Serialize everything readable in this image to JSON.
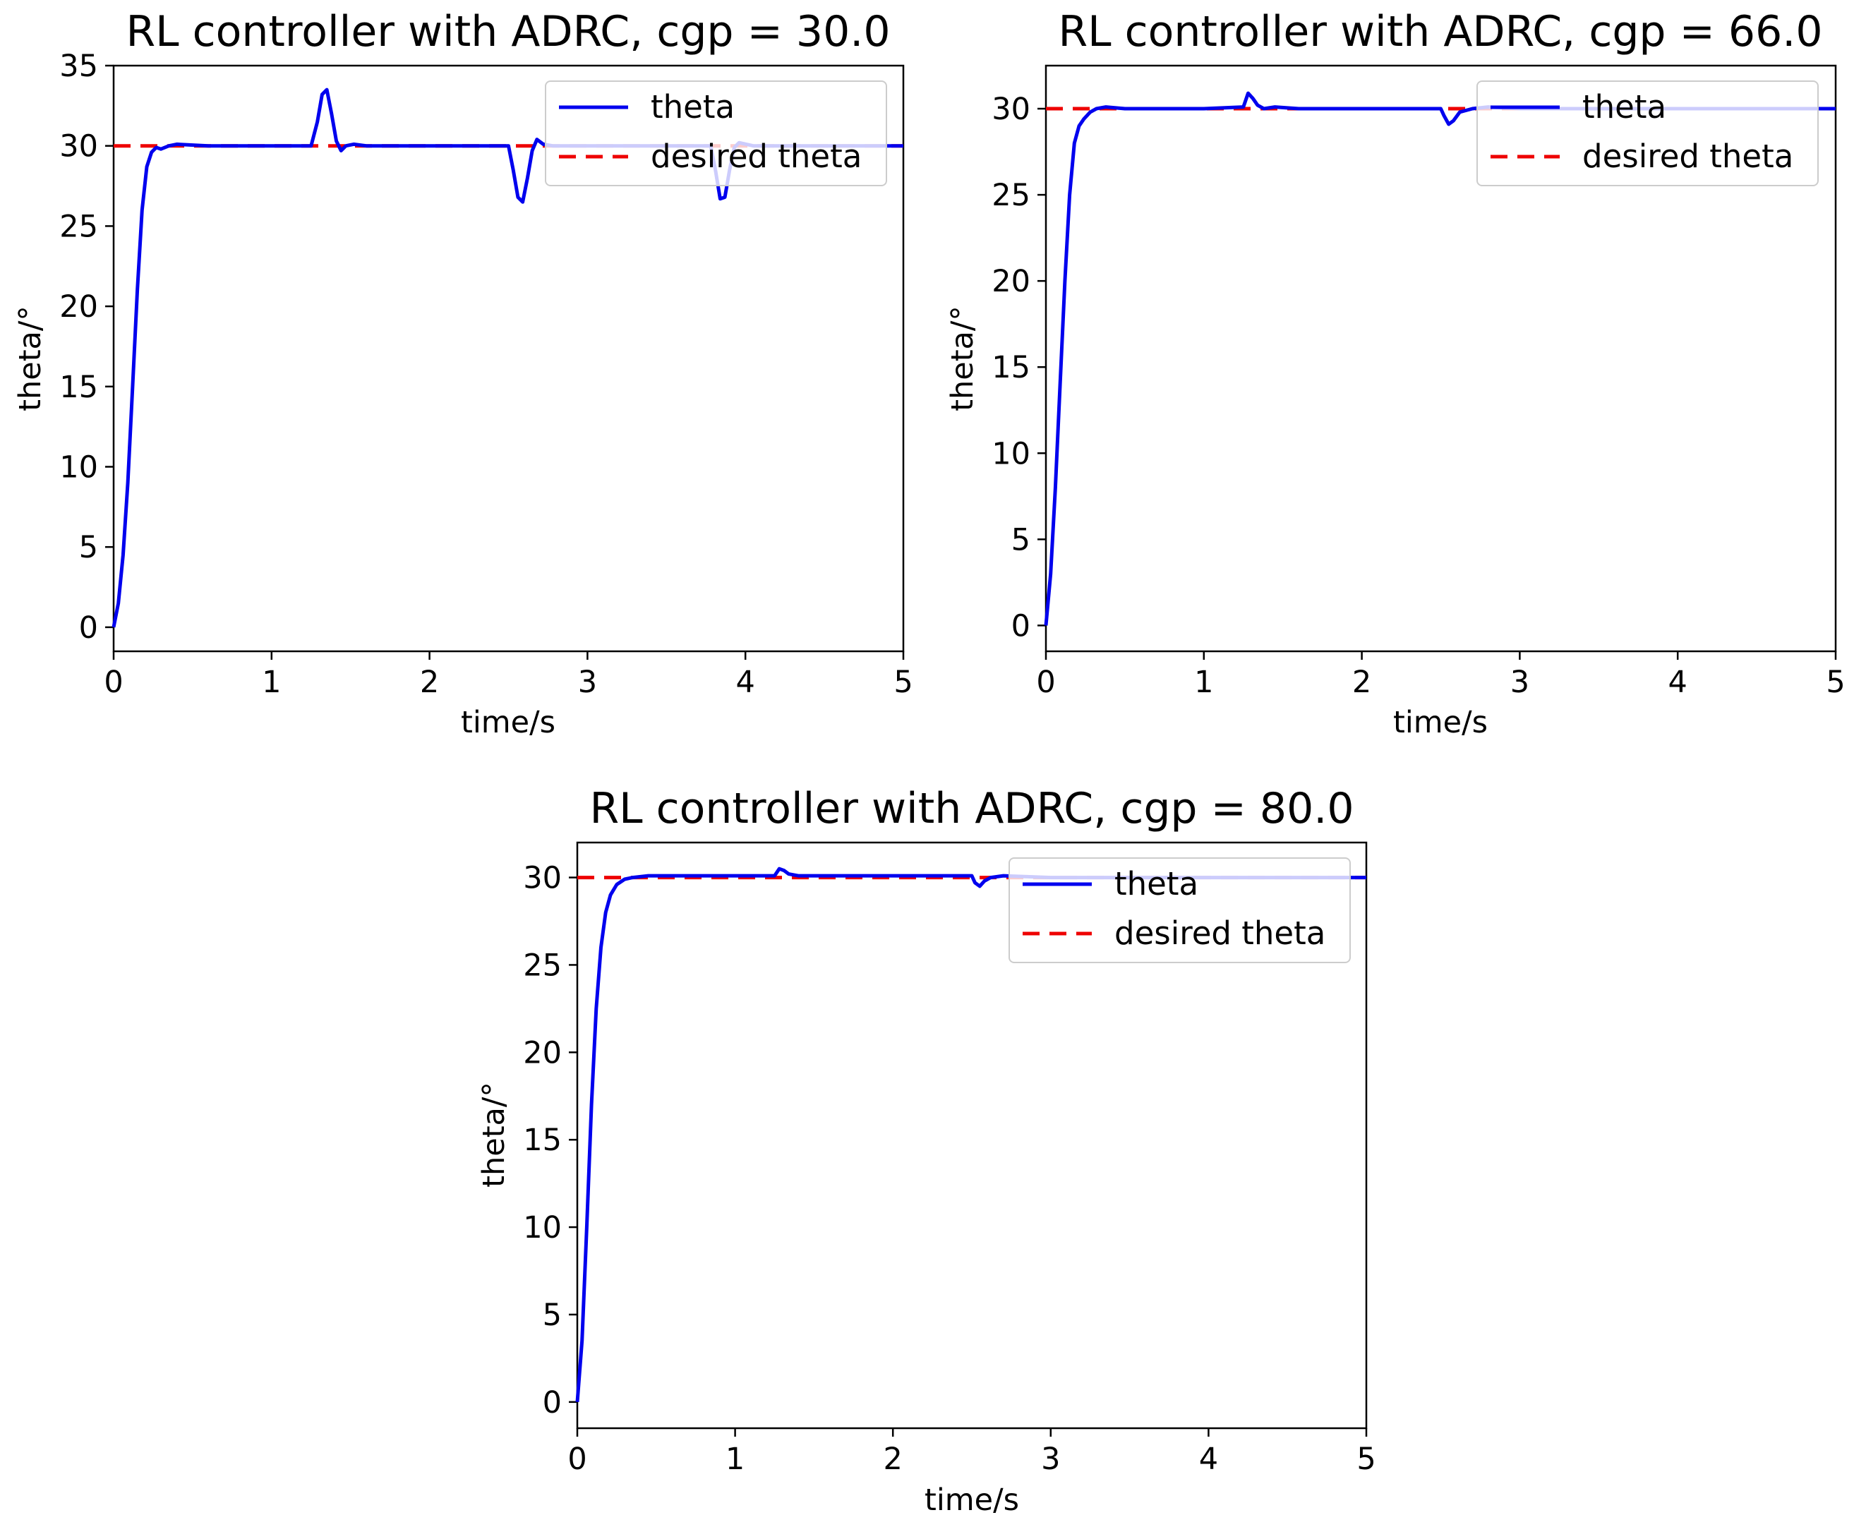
{
  "chart_data": [
    {
      "type": "line",
      "title": "RL controller with ADRC, cgp = 30.0",
      "xlabel": "time/s",
      "ylabel": "theta/°",
      "xlim": [
        0,
        5
      ],
      "ylim": [
        -1.5,
        35
      ],
      "xticks": [
        0,
        1,
        2,
        3,
        4,
        5
      ],
      "yticks": [
        0,
        5,
        10,
        15,
        20,
        25,
        30,
        35
      ],
      "legend_position": "top-right",
      "series": [
        {
          "name": "theta",
          "color": "#0000ee",
          "style": "solid",
          "x": [
            0,
            0.03,
            0.06,
            0.09,
            0.12,
            0.15,
            0.18,
            0.21,
            0.24,
            0.27,
            0.3,
            0.35,
            0.4,
            0.6,
            1.0,
            1.25,
            1.29,
            1.32,
            1.35,
            1.38,
            1.41,
            1.44,
            1.47,
            1.52,
            1.6,
            2.0,
            2.5,
            2.53,
            2.56,
            2.59,
            2.62,
            2.65,
            2.68,
            2.72,
            2.78,
            3.0,
            3.5,
            3.78,
            3.81,
            3.84,
            3.87,
            3.9,
            3.93,
            3.96,
            4.05,
            4.5,
            5.0
          ],
          "y": [
            0,
            1.5,
            4.5,
            9.0,
            15.0,
            21.0,
            26.0,
            28.7,
            29.6,
            29.9,
            29.8,
            30.0,
            30.1,
            30.0,
            30.0,
            30.0,
            31.5,
            33.2,
            33.5,
            32.0,
            30.3,
            29.7,
            30.0,
            30.1,
            30.0,
            30.0,
            30.0,
            28.5,
            26.8,
            26.5,
            28.0,
            29.7,
            30.4,
            30.1,
            30.0,
            30.0,
            30.0,
            30.0,
            28.5,
            26.7,
            26.8,
            28.5,
            29.9,
            30.2,
            30.0,
            30.0,
            30.0
          ]
        },
        {
          "name": "desired theta",
          "color": "#ee0000",
          "style": "dashed",
          "x": [
            0,
            5
          ],
          "y": [
            30,
            30
          ]
        }
      ]
    },
    {
      "type": "line",
      "title": "RL controller with ADRC, cgp = 66.0",
      "xlabel": "time/s",
      "ylabel": "theta/°",
      "xlim": [
        0,
        5
      ],
      "ylim": [
        -1.5,
        32.5
      ],
      "xticks": [
        0,
        1,
        2,
        3,
        4,
        5
      ],
      "yticks": [
        0,
        5,
        10,
        15,
        20,
        25,
        30
      ],
      "legend_position": "top-right",
      "series": [
        {
          "name": "theta",
          "color": "#0000ee",
          "style": "solid",
          "x": [
            0,
            0.03,
            0.06,
            0.09,
            0.12,
            0.15,
            0.18,
            0.21,
            0.24,
            0.28,
            0.32,
            0.38,
            0.5,
            1.0,
            1.25,
            1.28,
            1.31,
            1.34,
            1.38,
            1.45,
            1.6,
            2.0,
            2.5,
            2.52,
            2.55,
            2.58,
            2.62,
            2.7,
            2.8,
            3.0,
            4.0,
            5.0
          ],
          "y": [
            0,
            3.0,
            8.0,
            14.0,
            20.0,
            25.0,
            28.0,
            29.0,
            29.4,
            29.8,
            30.0,
            30.1,
            30.0,
            30.0,
            30.1,
            30.9,
            30.6,
            30.2,
            30.0,
            30.1,
            30.0,
            30.0,
            30.0,
            29.6,
            29.1,
            29.3,
            29.8,
            30.0,
            30.1,
            30.0,
            30.0,
            30.0
          ]
        },
        {
          "name": "desired theta",
          "color": "#ee0000",
          "style": "dashed",
          "x": [
            0,
            5
          ],
          "y": [
            30,
            30
          ]
        }
      ]
    },
    {
      "type": "line",
      "title": "RL controller with ADRC, cgp = 80.0",
      "xlabel": "time/s",
      "ylabel": "theta/°",
      "xlim": [
        0,
        5
      ],
      "ylim": [
        -1.5,
        32
      ],
      "xticks": [
        0,
        1,
        2,
        3,
        4,
        5
      ],
      "yticks": [
        0,
        5,
        10,
        15,
        20,
        25,
        30
      ],
      "legend_position": "top-right",
      "series": [
        {
          "name": "theta",
          "color": "#0000ee",
          "style": "solid",
          "x": [
            0,
            0.03,
            0.06,
            0.09,
            0.12,
            0.15,
            0.18,
            0.21,
            0.25,
            0.3,
            0.35,
            0.45,
            1.0,
            1.25,
            1.28,
            1.31,
            1.34,
            1.4,
            1.5,
            2.0,
            2.5,
            2.52,
            2.55,
            2.58,
            2.62,
            2.7,
            3.0,
            4.0,
            5.0
          ],
          "y": [
            0,
            3.5,
            10.0,
            17.0,
            22.5,
            26.0,
            28.0,
            29.0,
            29.6,
            29.9,
            30.0,
            30.1,
            30.1,
            30.1,
            30.5,
            30.4,
            30.2,
            30.1,
            30.1,
            30.1,
            30.1,
            29.7,
            29.5,
            29.8,
            30.0,
            30.1,
            30.0,
            30.0,
            30.0
          ]
        },
        {
          "name": "desired theta",
          "color": "#ee0000",
          "style": "dashed",
          "x": [
            0,
            5
          ],
          "y": [
            30,
            30
          ]
        }
      ]
    }
  ]
}
